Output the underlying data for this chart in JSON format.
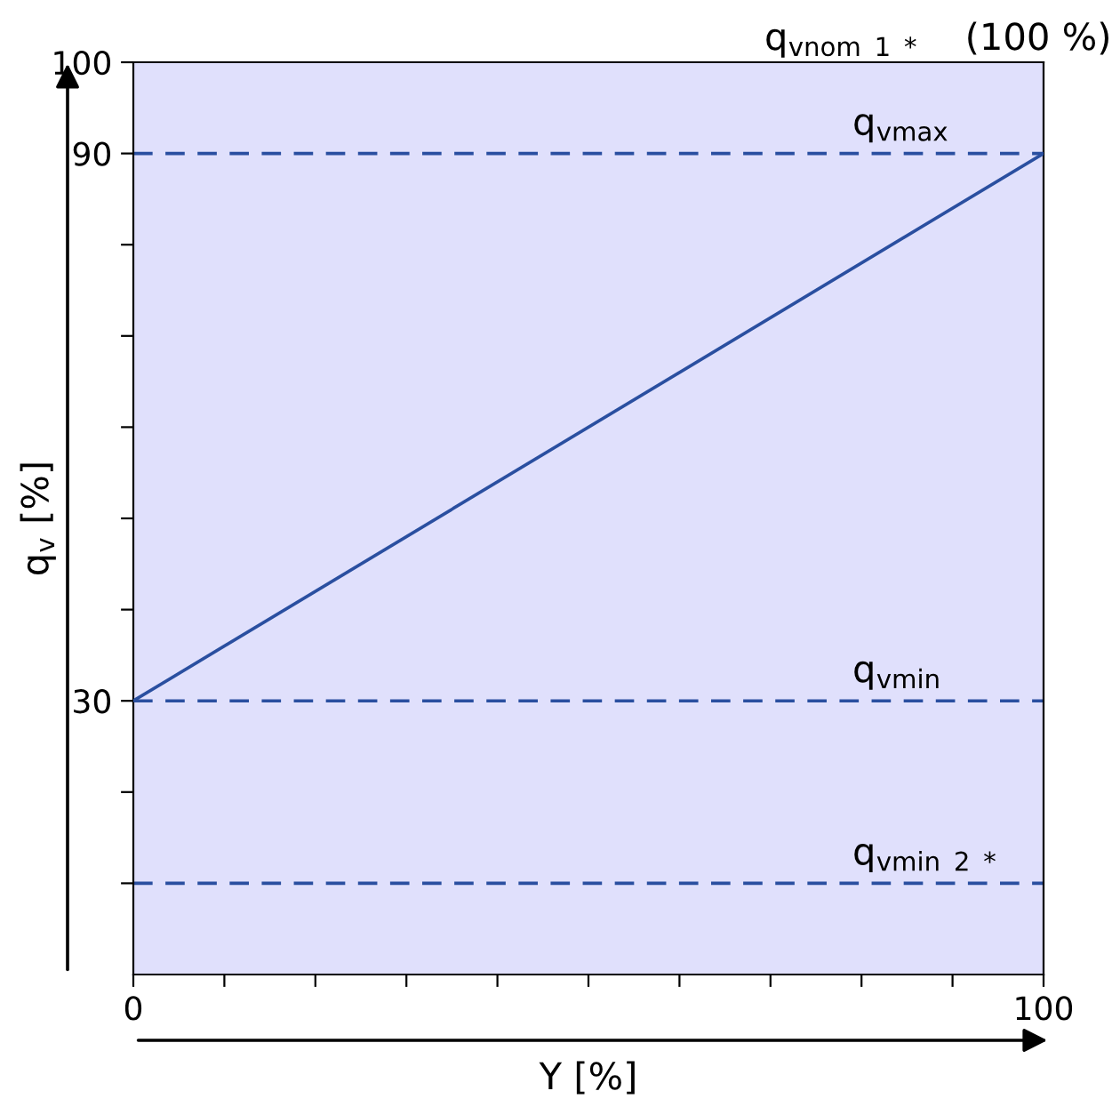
{
  "chart_data": {
    "type": "line",
    "xlabel": "Y [%]",
    "ylabel": "q$_{v}$ [%]",
    "x": [
      0,
      100
    ],
    "series": [
      {
        "color": "#2a4fa0",
        "values": [
          30,
          90
        ]
      }
    ],
    "xlim": [
      0,
      100
    ],
    "ylim": [
      0,
      100
    ],
    "xticks": [
      0,
      {
        "value": 10,
        "label": null
      },
      {
        "value": 20,
        "label": null
      },
      {
        "value": 30,
        "label": null
      },
      {
        "value": 40,
        "label": null
      },
      {
        "value": 50,
        "label": null
      },
      {
        "value": 60,
        "label": null
      },
      {
        "value": 70,
        "label": null
      },
      {
        "value": 80,
        "label": null
      },
      {
        "value": 90,
        "label": null
      },
      100
    ],
    "yticks": [
      {
        "value": 10,
        "label": null
      },
      {
        "value": 20,
        "label": null
      },
      30,
      {
        "value": 40,
        "label": null
      },
      {
        "value": 50,
        "label": null
      },
      {
        "value": 60,
        "label": null
      },
      {
        "value": 70,
        "label": null
      },
      {
        "value": 80,
        "label": null
      },
      90,
      100
    ],
    "ref_lines": [
      {
        "axis": "y",
        "value": 90,
        "label": "q$_{vmax}$",
        "color": "#2a4fa0",
        "line_style": "dashed"
      },
      {
        "axis": "y",
        "value": 30,
        "label": "q$_{vmin}$",
        "color": "#2a4fa0",
        "line_style": "dashed"
      },
      {
        "axis": "y",
        "value": 10,
        "label": "q$_{vmin}$ $_{2}$ $_{*}$",
        "color": "#2a4fa0",
        "line_style": "dashed"
      }
    ],
    "annotations": [
      "q$_{vnom}$ $_{1}$ $_{*}$    (100 %)"
    ],
    "grid": false,
    "legend": false,
    "marker": "none",
    "line_style": "solid"
  }
}
